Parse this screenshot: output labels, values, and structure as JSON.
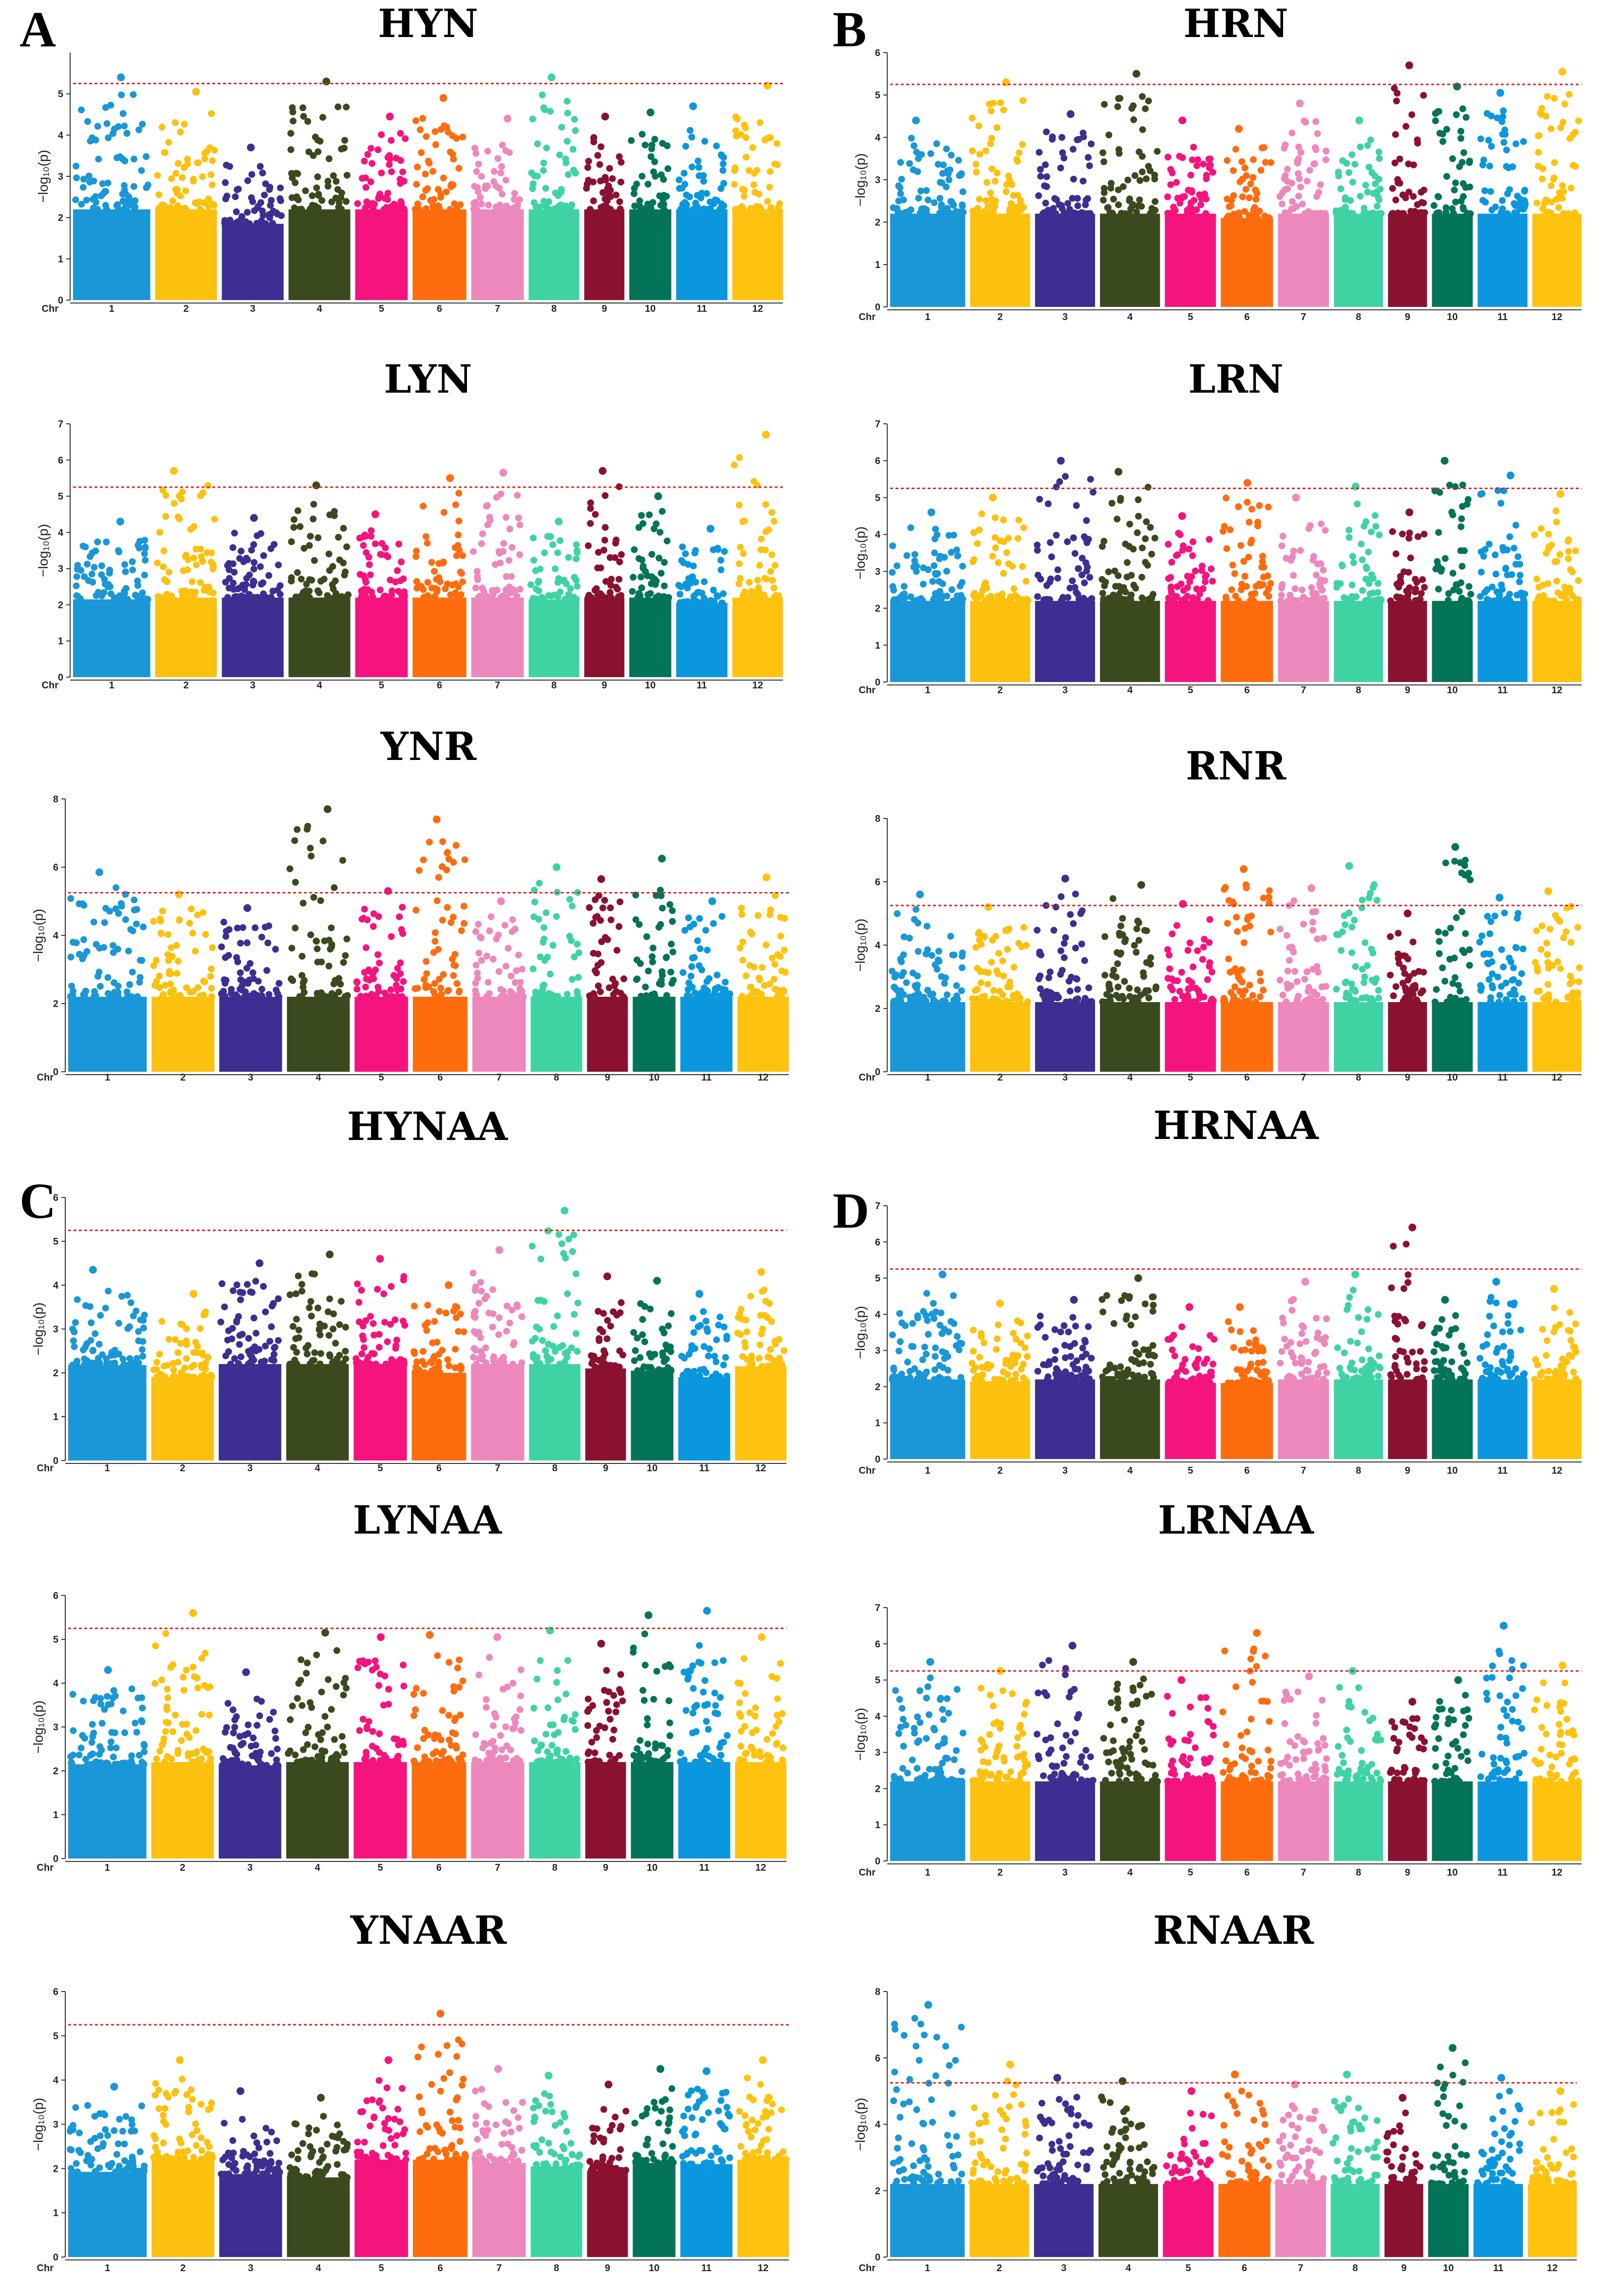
{
  "panel_labels": [
    "A",
    "B",
    "C",
    "D"
  ],
  "chr_axis_label": "Chr",
  "y_axis_label": "−log₁₀(p)",
  "colors": [
    "#1a97d6",
    "#fcc10f",
    "#3c2f91",
    "#3b4a1e",
    "#f5137d",
    "#fe6c0e",
    "#ed88bd",
    "#3fd3a3",
    "#8b1131",
    "#047458",
    "#0b97de",
    "#ffc20e"
  ],
  "threshold_color": "#e8201e",
  "chart_data": [
    {
      "type": "scatter",
      "title": "HYN",
      "panel": "A",
      "x_label": "Chr",
      "y_label": "−log₁₀(p)",
      "categories": [
        "1",
        "2",
        "3",
        "4",
        "5",
        "6",
        "7",
        "8",
        "9",
        "10",
        "11",
        "12"
      ],
      "ylim": [
        0,
        6
      ],
      "yticks": [
        0,
        1,
        2,
        3,
        4,
        5
      ],
      "threshold": 5.25,
      "max_y": [
        5.4,
        5.05,
        3.7,
        5.3,
        4.45,
        4.9,
        4.4,
        5.4,
        4.45,
        4.55,
        4.7,
        5.2
      ]
    },
    {
      "type": "scatter",
      "title": "HRN",
      "panel": "B",
      "x_label": "Chr",
      "y_label": "−log₁₀(p)",
      "categories": [
        "1",
        "2",
        "3",
        "4",
        "5",
        "6",
        "7",
        "8",
        "9",
        "10",
        "11",
        "12"
      ],
      "ylim": [
        0,
        6
      ],
      "yticks": [
        0,
        1,
        2,
        3,
        4,
        5,
        6
      ],
      "threshold": 5.25,
      "max_y": [
        4.4,
        5.3,
        4.55,
        5.5,
        4.4,
        4.2,
        4.8,
        4.4,
        5.7,
        5.2,
        5.05,
        5.55
      ]
    },
    {
      "type": "scatter",
      "title": "LYN",
      "panel": "A",
      "x_label": "Chr",
      "y_label": "−log₁₀(p)",
      "categories": [
        "1",
        "2",
        "3",
        "4",
        "5",
        "6",
        "7",
        "8",
        "9",
        "10",
        "11",
        "12"
      ],
      "ylim": [
        0,
        7
      ],
      "yticks": [
        0,
        1,
        2,
        3,
        4,
        5,
        6,
        7
      ],
      "threshold": 5.25,
      "max_y": [
        4.3,
        5.7,
        4.4,
        5.3,
        4.5,
        5.5,
        5.65,
        4.3,
        5.7,
        5.0,
        4.1,
        6.7
      ]
    },
    {
      "type": "scatter",
      "title": "LRN",
      "panel": "B",
      "x_label": "Chr",
      "y_label": "−log₁₀(p)",
      "categories": [
        "1",
        "2",
        "3",
        "4",
        "5",
        "6",
        "7",
        "8",
        "9",
        "10",
        "11",
        "12"
      ],
      "ylim": [
        0,
        7
      ],
      "yticks": [
        0,
        1,
        2,
        3,
        4,
        5,
        6,
        7
      ],
      "threshold": 5.25,
      "max_y": [
        4.6,
        5.0,
        6.0,
        5.7,
        4.5,
        5.4,
        5.0,
        5.3,
        4.6,
        6.0,
        5.6,
        5.1
      ]
    },
    {
      "type": "scatter",
      "title": "YNR",
      "panel": "A",
      "x_label": "Chr",
      "y_label": "−log₁₀(p)",
      "categories": [
        "1",
        "2",
        "3",
        "4",
        "5",
        "6",
        "7",
        "8",
        "9",
        "10",
        "11",
        "12"
      ],
      "ylim": [
        0,
        8
      ],
      "yticks": [
        0,
        2,
        4,
        6,
        8
      ],
      "threshold": 5.25,
      "max_y": [
        5.85,
        5.2,
        4.8,
        7.7,
        5.3,
        7.4,
        5.0,
        6.0,
        5.65,
        6.25,
        5.0,
        5.7
      ]
    },
    {
      "type": "scatter",
      "title": "RNR",
      "panel": "B",
      "x_label": "Chr",
      "y_label": "−log₁₀(p)",
      "categories": [
        "1",
        "2",
        "3",
        "4",
        "5",
        "6",
        "7",
        "8",
        "9",
        "10",
        "11",
        "12"
      ],
      "ylim": [
        0,
        8
      ],
      "yticks": [
        0,
        2,
        4,
        6,
        8
      ],
      "threshold": 5.25,
      "max_y": [
        5.6,
        5.2,
        6.1,
        5.9,
        5.3,
        6.4,
        5.8,
        6.5,
        5.0,
        7.1,
        5.5,
        5.7
      ]
    },
    {
      "type": "scatter",
      "title": "HYNAA",
      "panel": "C",
      "x_label": "Chr",
      "y_label": "−log₁₀(p)",
      "categories": [
        "1",
        "2",
        "3",
        "4",
        "5",
        "6",
        "7",
        "8",
        "9",
        "10",
        "11",
        "12"
      ],
      "ylim": [
        0,
        6
      ],
      "yticks": [
        0,
        1,
        2,
        3,
        4,
        5,
        6
      ],
      "threshold": 5.25,
      "max_y": [
        4.35,
        3.8,
        4.5,
        4.7,
        4.6,
        4.0,
        4.8,
        5.7,
        4.2,
        4.1,
        3.8,
        4.3
      ]
    },
    {
      "type": "scatter",
      "title": "HRNAA",
      "panel": "D",
      "x_label": "Chr",
      "y_label": "−log₁₀(p)",
      "categories": [
        "1",
        "2",
        "3",
        "4",
        "5",
        "6",
        "7",
        "8",
        "9",
        "10",
        "11",
        "12"
      ],
      "ylim": [
        0,
        7
      ],
      "yticks": [
        0,
        1,
        2,
        3,
        4,
        5,
        6,
        7
      ],
      "threshold": 5.25,
      "max_y": [
        5.1,
        4.3,
        4.4,
        5.0,
        4.2,
        4.2,
        4.9,
        5.1,
        6.4,
        4.4,
        4.9,
        4.7
      ]
    },
    {
      "type": "scatter",
      "title": "LYNAA",
      "panel": "C",
      "x_label": "Chr",
      "y_label": "−log₁₀(p)",
      "categories": [
        "1",
        "2",
        "3",
        "4",
        "5",
        "6",
        "7",
        "8",
        "9",
        "10",
        "11",
        "12"
      ],
      "ylim": [
        0,
        6
      ],
      "yticks": [
        0,
        1,
        2,
        3,
        4,
        5,
        6
      ],
      "threshold": 5.25,
      "max_y": [
        4.3,
        5.6,
        4.25,
        5.15,
        5.05,
        5.1,
        5.05,
        5.2,
        4.9,
        5.55,
        5.65,
        5.05
      ]
    },
    {
      "type": "scatter",
      "title": "LRNAA",
      "panel": "D",
      "x_label": "Chr",
      "y_label": "−log₁₀(p)",
      "categories": [
        "1",
        "2",
        "3",
        "4",
        "5",
        "6",
        "7",
        "8",
        "9",
        "10",
        "11",
        "12"
      ],
      "ylim": [
        0,
        7
      ],
      "yticks": [
        0,
        1,
        2,
        3,
        4,
        5,
        6,
        7
      ],
      "threshold": 5.25,
      "max_y": [
        5.5,
        5.25,
        5.95,
        5.5,
        5.0,
        6.3,
        5.1,
        5.25,
        4.4,
        5.0,
        6.5,
        5.4
      ]
    },
    {
      "type": "scatter",
      "title": "YNAAR",
      "panel": "C",
      "x_label": "Chr",
      "y_label": "−log₁₀(p)",
      "categories": [
        "1",
        "2",
        "3",
        "4",
        "5",
        "6",
        "7",
        "8",
        "9",
        "10",
        "11",
        "12"
      ],
      "ylim": [
        0,
        6
      ],
      "yticks": [
        0,
        1,
        2,
        3,
        4,
        5,
        6
      ],
      "threshold": 5.25,
      "max_y": [
        3.85,
        4.45,
        3.75,
        3.6,
        4.45,
        5.5,
        4.25,
        4.1,
        3.9,
        4.25,
        4.2,
        4.45
      ]
    },
    {
      "type": "scatter",
      "title": "RNAAR",
      "panel": "D",
      "x_label": "Chr",
      "y_label": "−log₁₀(p)",
      "categories": [
        "1",
        "2",
        "3",
        "4",
        "5",
        "6",
        "7",
        "8",
        "9",
        "10",
        "11",
        "12"
      ],
      "ylim": [
        0,
        8
      ],
      "yticks": [
        0,
        2,
        4,
        6,
        8
      ],
      "threshold": 5.25,
      "max_y": [
        7.6,
        5.8,
        5.4,
        5.3,
        5.0,
        5.5,
        5.2,
        5.5,
        4.8,
        6.3,
        5.4,
        5.0
      ]
    }
  ]
}
